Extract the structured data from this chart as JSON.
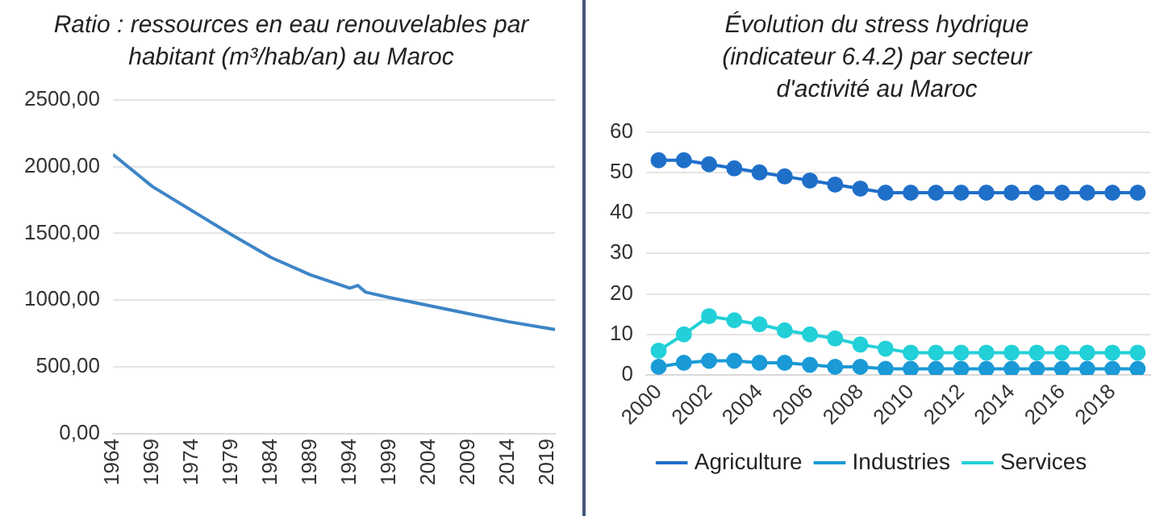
{
  "chart_data": [
    {
      "type": "line",
      "title": "Ratio : ressources en eau renouvelables par habitant (m³/hab/an) au Maroc",
      "x": [
        1964,
        1969,
        1974,
        1979,
        1984,
        1989,
        1994,
        1995,
        1996,
        1999,
        2004,
        2009,
        2014,
        2020
      ],
      "series": [
        {
          "color": "#3d85c6",
          "values": [
            2090,
            1850,
            1670,
            1490,
            1320,
            1190,
            1090,
            1110,
            1060,
            1020,
            960,
            900,
            840,
            780
          ]
        }
      ],
      "xlim": [
        1964,
        2020
      ],
      "xticks": [
        1964,
        1969,
        1974,
        1979,
        1984,
        1989,
        1994,
        1999,
        2004,
        2009,
        2014,
        2019
      ],
      "ylim": [
        0,
        2500
      ],
      "yticks": [
        {
          "value": 0,
          "label": "0,00"
        },
        {
          "value": 500,
          "label": "500,00"
        },
        {
          "value": 1000,
          "label": "1000,00"
        },
        {
          "value": 1500,
          "label": "1500,00"
        },
        {
          "value": 2000,
          "label": "2000,00"
        },
        {
          "value": 2500,
          "label": "2500,00"
        }
      ],
      "grid": "y",
      "marker": "none",
      "legend": false
    },
    {
      "type": "line",
      "title": "Évolution du stress hydrique (indicateur 6.4.2) par secteur d'activité au Maroc",
      "categories": [
        "2000",
        null,
        "2002",
        null,
        "2004",
        null,
        "2006",
        null,
        "2008",
        null,
        "2010",
        null,
        "2012",
        null,
        "2014",
        null,
        "2016",
        null,
        "2018",
        null
      ],
      "series": [
        {
          "name": "Agriculture",
          "color": "#1f6fc9",
          "values": [
            53,
            53,
            52,
            51,
            50,
            49,
            48,
            47,
            46,
            45,
            45,
            45,
            45,
            45,
            45,
            45,
            45,
            45,
            45,
            45
          ]
        },
        {
          "name": "Industries",
          "color": "#1a9ad6",
          "values": [
            2,
            3,
            3.5,
            3.5,
            3,
            3,
            2.5,
            2,
            2,
            1.5,
            1.5,
            1.5,
            1.5,
            1.5,
            1.5,
            1.5,
            1.5,
            1.5,
            1.5,
            1.5
          ]
        },
        {
          "name": "Services",
          "color": "#22d0d8",
          "values": [
            6,
            10,
            14.5,
            13.5,
            12.5,
            11,
            10,
            9,
            7.5,
            6.5,
            5.5,
            5.5,
            5.5,
            5.5,
            5.5,
            5.5,
            5.5,
            5.5,
            5.5,
            5.5
          ]
        }
      ],
      "ylim": [
        0,
        60
      ],
      "yticks": [
        0,
        10,
        20,
        30,
        40,
        50,
        60
      ],
      "grid": "y",
      "marker": "circle",
      "legend": "bottom"
    }
  ]
}
